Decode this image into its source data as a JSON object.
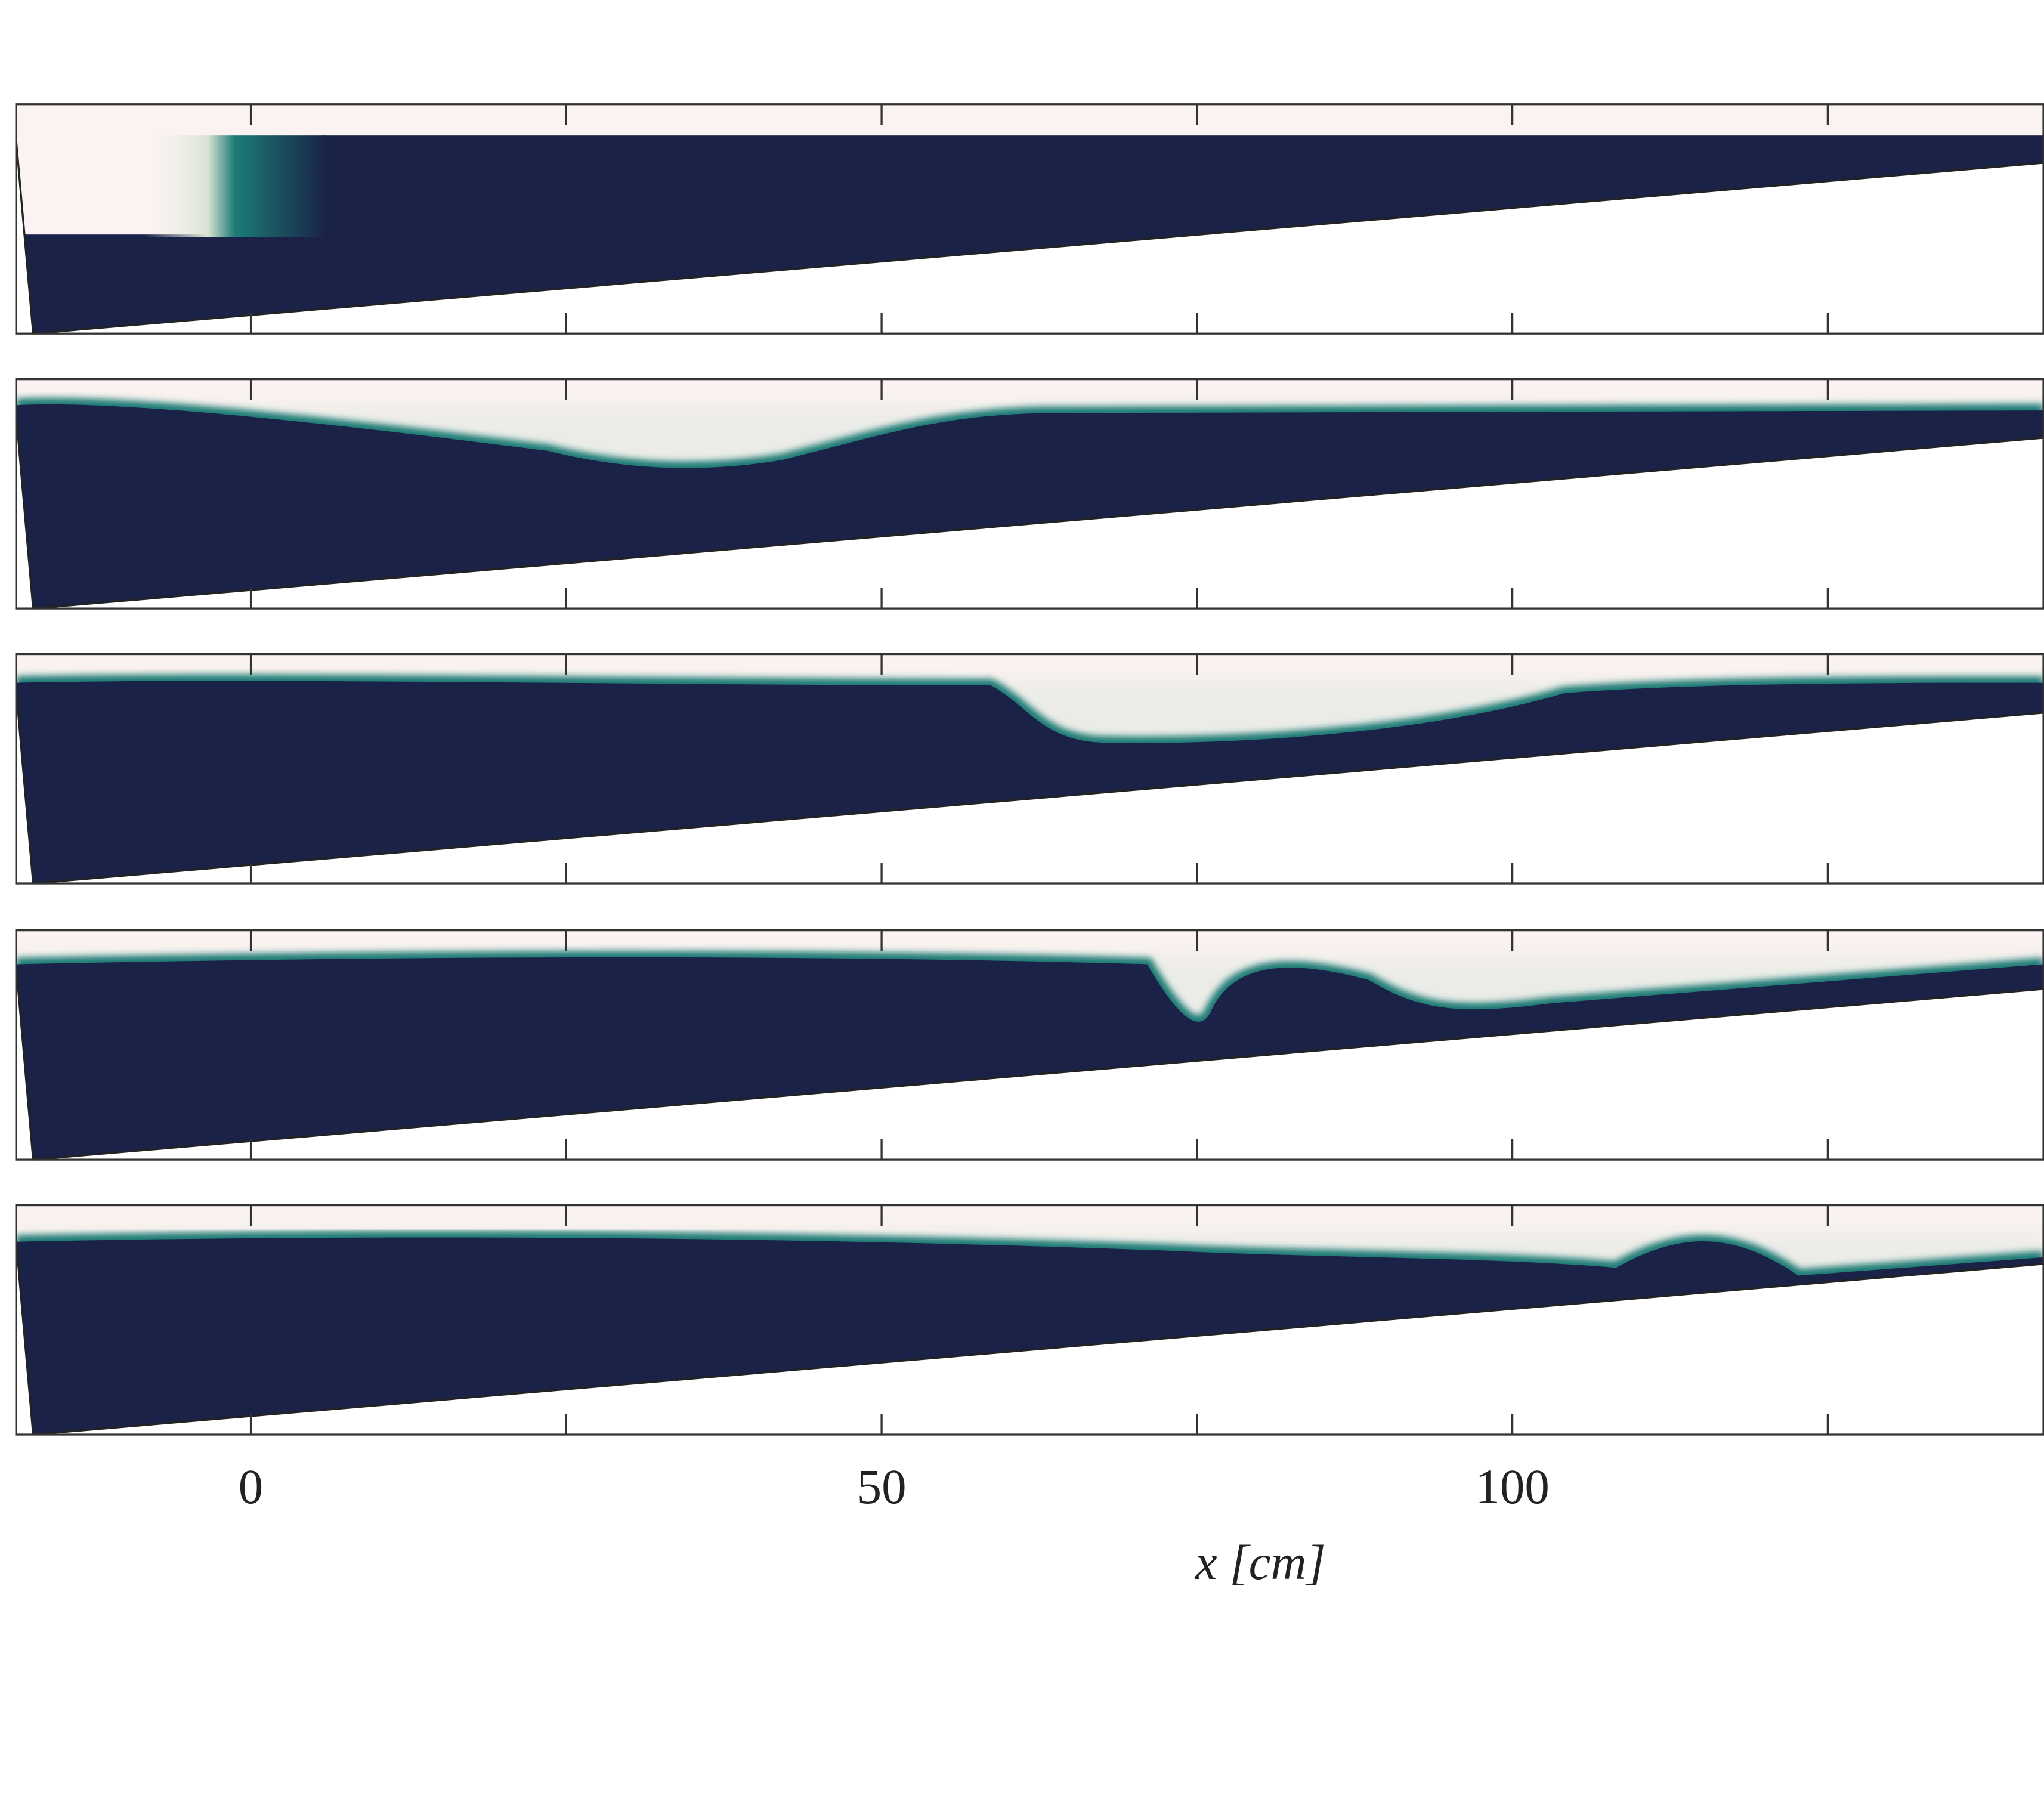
{
  "chart_data": {
    "type": "image",
    "xlabel": "x [cm]",
    "xlim": [
      -18.6,
      142.1
    ],
    "xticks": [
      0,
      50,
      100
    ],
    "minor_xticks": [
      25,
      75,
      125
    ]
  }
}
